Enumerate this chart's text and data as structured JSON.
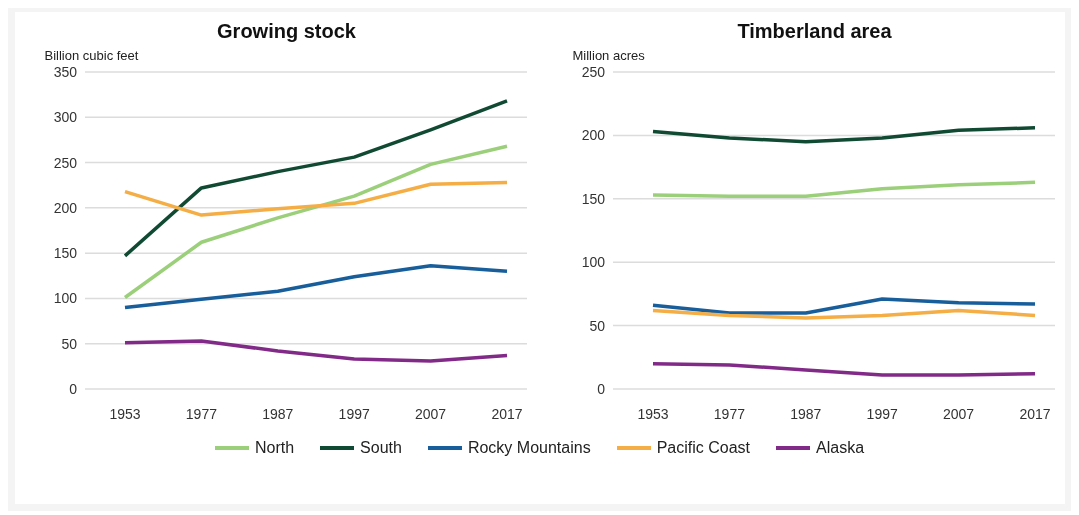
{
  "chart_data": [
    {
      "type": "line",
      "title": "Growing stock",
      "ylabel": "Billion cubic feet",
      "categories": [
        "1953",
        "1977",
        "1987",
        "1997",
        "2007",
        "2017"
      ],
      "ylim": [
        0,
        350
      ],
      "yticks": [
        0,
        50,
        100,
        150,
        200,
        250,
        300,
        350
      ],
      "grid": "y",
      "legend": "bottom",
      "series": [
        {
          "name": "North",
          "color": "#9bcf7a",
          "values": [
            101,
            162,
            189,
            213,
            248,
            268
          ]
        },
        {
          "name": "South",
          "color": "#114a33",
          "values": [
            147,
            222,
            240,
            256,
            286,
            318
          ]
        },
        {
          "name": "Rocky Mountains",
          "color": "#175e9b",
          "values": [
            90,
            99,
            108,
            124,
            136,
            130
          ]
        },
        {
          "name": "Pacific Coast",
          "color": "#f4ae45",
          "values": [
            218,
            192,
            199,
            205,
            226,
            228
          ]
        },
        {
          "name": "Alaska",
          "color": "#822a87",
          "values": [
            51,
            53,
            42,
            33,
            31,
            37
          ]
        }
      ]
    },
    {
      "type": "line",
      "title": "Timberland area",
      "ylabel": "Million acres",
      "categories": [
        "1953",
        "1977",
        "1987",
        "1997",
        "2007",
        "2017"
      ],
      "ylim": [
        0,
        250
      ],
      "yticks": [
        0,
        50,
        100,
        150,
        200,
        250
      ],
      "grid": "y",
      "legend": "bottom",
      "series": [
        {
          "name": "North",
          "color": "#9bcf7a",
          "values": [
            153,
            152,
            152,
            158,
            161,
            163
          ]
        },
        {
          "name": "South",
          "color": "#114a33",
          "values": [
            203,
            198,
            195,
            198,
            204,
            206
          ]
        },
        {
          "name": "Rocky Mountains",
          "color": "#175e9b",
          "values": [
            66,
            60,
            60,
            71,
            68,
            67
          ]
        },
        {
          "name": "Pacific Coast",
          "color": "#f4ae45",
          "values": [
            62,
            58,
            56,
            58,
            62,
            58
          ]
        },
        {
          "name": "Alaska",
          "color": "#822a87",
          "values": [
            20,
            19,
            15,
            11,
            11,
            12
          ]
        }
      ]
    }
  ]
}
